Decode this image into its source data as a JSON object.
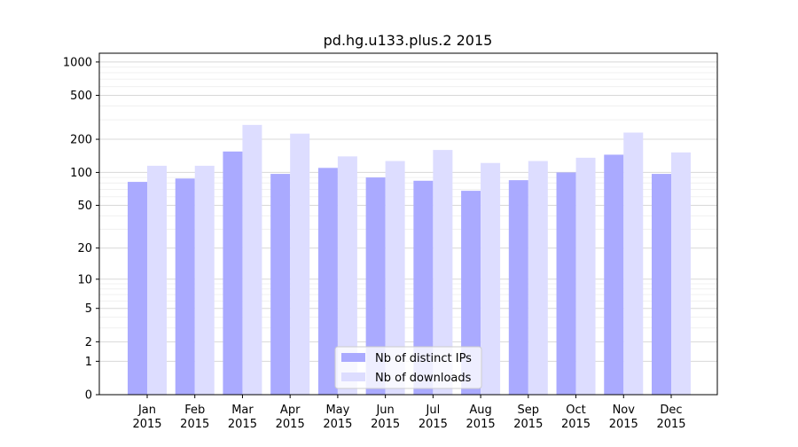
{
  "chart_data": {
    "type": "bar",
    "title": "pd.hg.u133.plus.2 2015",
    "xlabel": "",
    "ylabel": "",
    "y_scale": "symlog",
    "ylim": [
      0,
      1200
    ],
    "y_ticks": [
      0,
      1,
      2,
      5,
      10,
      20,
      50,
      100,
      200,
      500,
      1000
    ],
    "y_tick_labels": [
      "0",
      "1",
      "2",
      "5",
      "10",
      "20",
      "50",
      "100",
      "200",
      "500",
      "1000"
    ],
    "categories": [
      [
        "Jan",
        "2015"
      ],
      [
        "Feb",
        "2015"
      ],
      [
        "Mar",
        "2015"
      ],
      [
        "Apr",
        "2015"
      ],
      [
        "May",
        "2015"
      ],
      [
        "Jun",
        "2015"
      ],
      [
        "Jul",
        "2015"
      ],
      [
        "Aug",
        "2015"
      ],
      [
        "Sep",
        "2015"
      ],
      [
        "Oct",
        "2015"
      ],
      [
        "Nov",
        "2015"
      ],
      [
        "Dec",
        "2015"
      ]
    ],
    "series": [
      {
        "name": "Nb of distinct IPs",
        "color": "#aaaaff",
        "values": [
          82,
          88,
          155,
          97,
          110,
          90,
          84,
          68,
          85,
          100,
          145,
          97
        ]
      },
      {
        "name": "Nb of downloads",
        "color": "#ddddff",
        "values": [
          115,
          115,
          270,
          225,
          140,
          127,
          160,
          122,
          127,
          136,
          230,
          152
        ]
      }
    ],
    "grid": true,
    "legend_position": "bottom-center"
  }
}
